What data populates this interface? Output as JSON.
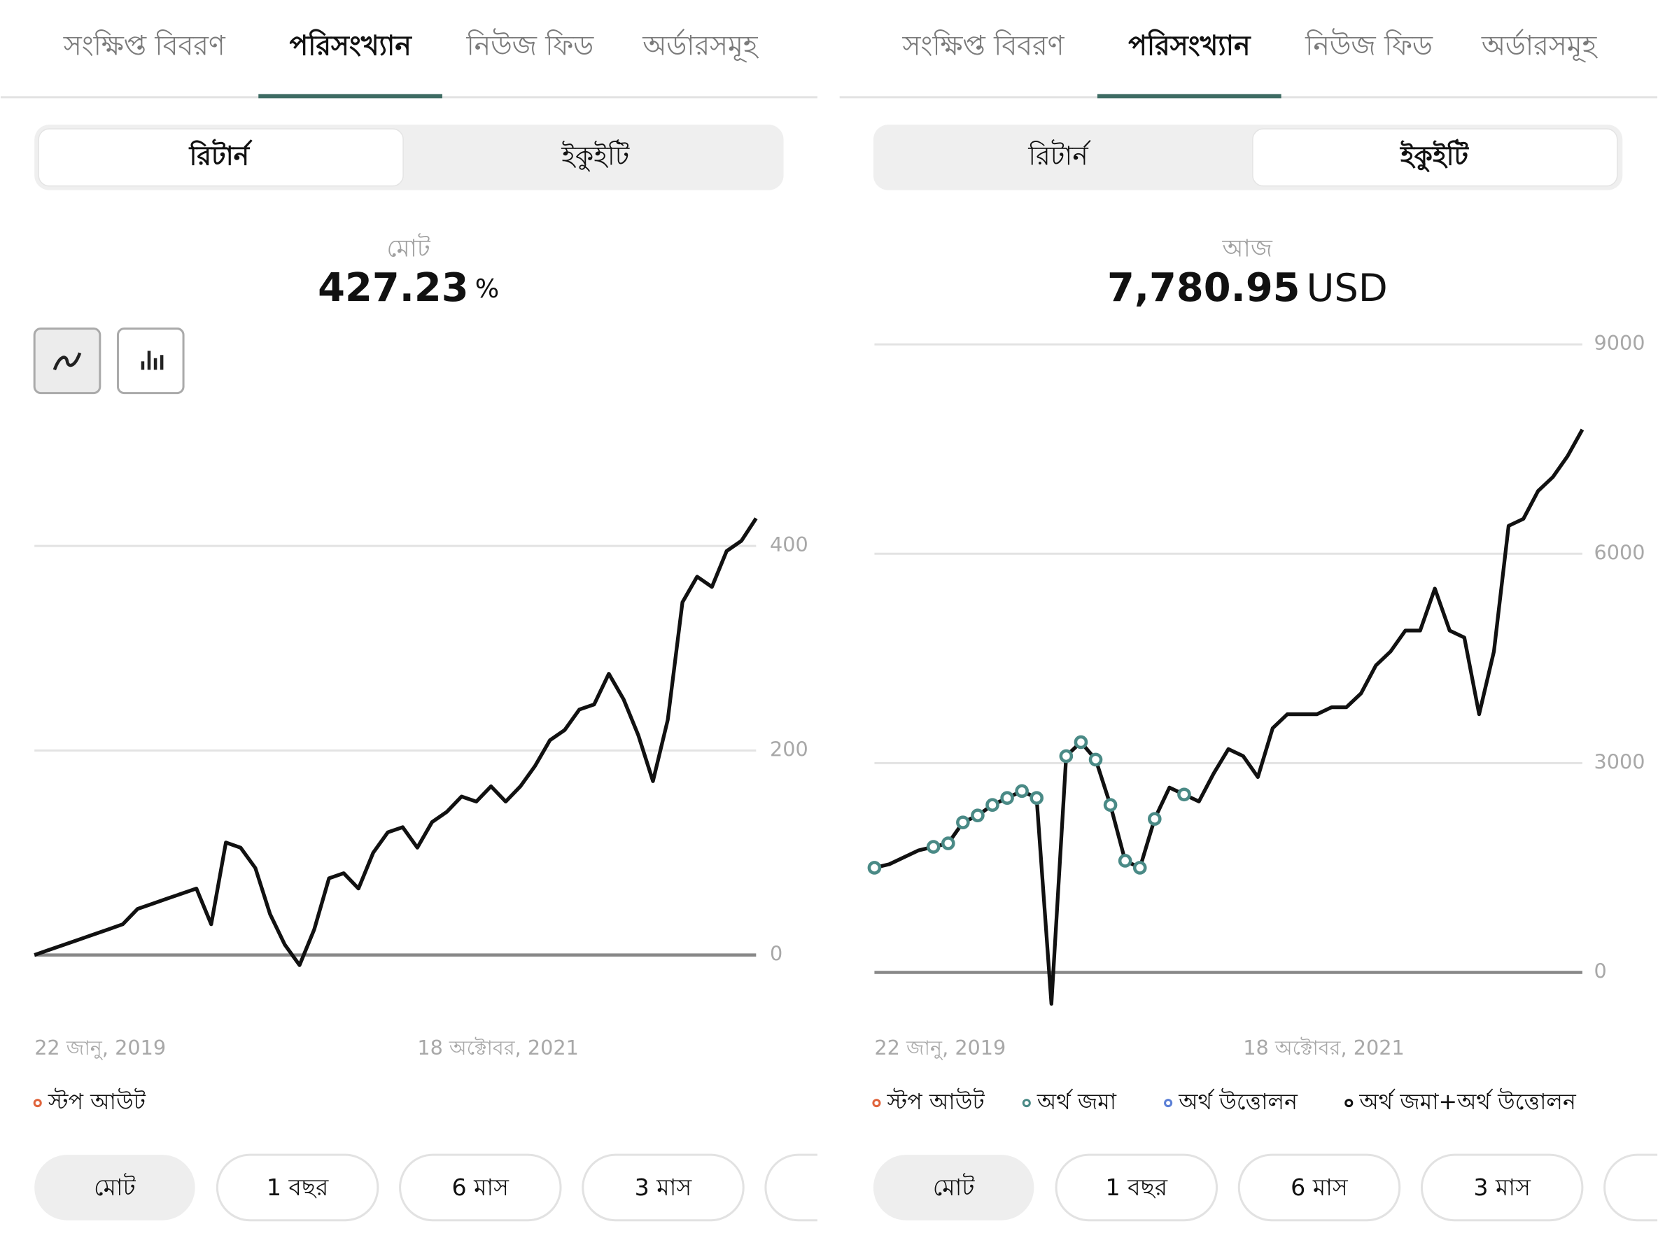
{
  "panels": [
    {
      "tabs": [
        "সংক্ষিপ্ত বিবরণ",
        "পরিসংখ্যান",
        "নিউজ ফিড",
        "অর্ডারসমূহ"
      ],
      "active_tab": 1,
      "toggle": [
        "রিটার্ন",
        "ইকুইটি"
      ],
      "active_toggle": 0,
      "summary_label": "মোট",
      "summary_value": "427.23",
      "summary_unit": "%",
      "legend": [
        {
          "name": "স্টপ আউট",
          "color": "#e0643c"
        }
      ],
      "periods": [
        "মোট",
        "1 বছর",
        "6 মাস",
        "3 মাস"
      ]
    },
    {
      "tabs": [
        "সংক্ষিপ্ত বিবরণ",
        "পরিসংখ্যান",
        "নিউজ ফিড",
        "অর্ডারসমূহ"
      ],
      "active_tab": 1,
      "toggle": [
        "রিটার্ন",
        "ইকুইটি"
      ],
      "active_toggle": 1,
      "summary_label": "আজ",
      "summary_value": "7,780.95",
      "summary_unit": "USD",
      "legend": [
        {
          "name": "স্টপ আউট",
          "color": "#e0643c"
        },
        {
          "name": "অর্থ জমা",
          "color": "#4a8a86"
        },
        {
          "name": "অর্থ উত্তোলন",
          "color": "#5b7fd6"
        },
        {
          "name": "অর্থ জমা+অর্থ উত্তোলন",
          "color": "#111111"
        }
      ],
      "periods": [
        "মোট",
        "1 বছর",
        "6 মাস",
        "3 মাস"
      ]
    }
  ],
  "chart_data": [
    {
      "type": "line",
      "ylim": [
        -58,
        500
      ],
      "yticks": [
        0,
        200,
        400
      ],
      "xticks": [
        {
          "value": 0,
          "label": "22 জানু, 2019"
        },
        {
          "value": 26,
          "label": "18 অক্টোবর, 2021"
        }
      ],
      "series": [
        {
          "color": "#111111",
          "values": [
            0,
            5,
            10,
            15,
            20,
            25,
            30,
            45,
            50,
            55,
            60,
            65,
            30,
            110,
            105,
            85,
            40,
            10,
            -10,
            25,
            75,
            80,
            65,
            100,
            120,
            125,
            105,
            130,
            140,
            155,
            150,
            165,
            150,
            165,
            185,
            210,
            220,
            240,
            245,
            275,
            250,
            215,
            170,
            230,
            345,
            370,
            360,
            395,
            405,
            427
          ]
        }
      ]
    },
    {
      "type": "line",
      "ylim": [
        -600,
        9000
      ],
      "yticks": [
        0,
        3000,
        6000,
        9000
      ],
      "xticks": [
        {
          "value": 0,
          "label": "22 জানু, 2019"
        },
        {
          "value": 25,
          "label": "18 অক্টোবর, 2021"
        }
      ],
      "series": [
        {
          "color": "#111111",
          "values": [
            1500,
            1550,
            1650,
            1750,
            1800,
            1850,
            2150,
            2250,
            2400,
            2500,
            2600,
            2500,
            -450,
            3100,
            3300,
            3050,
            2400,
            1600,
            1500,
            2200,
            2650,
            2550,
            2450,
            2850,
            3200,
            3100,
            2800,
            3500,
            3700,
            3700,
            3700,
            3800,
            3800,
            4000,
            4400,
            4600,
            4900,
            4900,
            5500,
            4900,
            4800,
            3700,
            4600,
            6400,
            6500,
            6900,
            7100,
            7400,
            7780
          ]
        },
        {
          "color": "#4a8a86",
          "x": [
            0,
            4,
            5,
            6,
            7,
            8,
            9,
            10,
            11,
            13,
            14,
            15,
            16,
            17,
            18,
            19,
            21
          ],
          "values": [
            1500,
            1800,
            1850,
            2150,
            2250,
            2400,
            2500,
            2600,
            2500,
            3100,
            3300,
            3050,
            2400,
            1600,
            1500,
            2200,
            2550
          ]
        }
      ]
    }
  ]
}
